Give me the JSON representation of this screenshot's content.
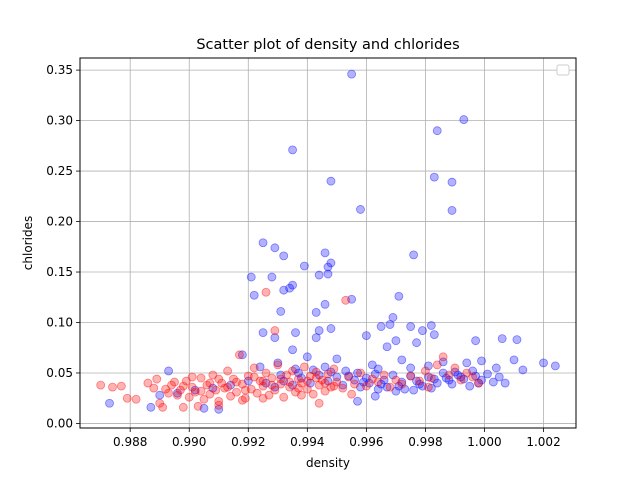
{
  "chart_data": {
    "type": "scatter",
    "title": "Scatter plot of density and chlorides",
    "xlabel": "density",
    "ylabel": "chlorides",
    "xlim": [
      0.9863,
      1.0031
    ],
    "ylim": [
      -0.0045,
      0.362
    ],
    "xticks": [
      0.988,
      0.99,
      0.992,
      0.994,
      0.996,
      0.998,
      1.0,
      1.002
    ],
    "xtick_labels": [
      "0.988",
      "0.990",
      "0.992",
      "0.994",
      "0.996",
      "0.998",
      "1.000",
      "1.002"
    ],
    "yticks": [
      0.0,
      0.05,
      0.1,
      0.15,
      0.2,
      0.25,
      0.3,
      0.35
    ],
    "ytick_labels": [
      "0.00",
      "0.05",
      "0.10",
      "0.15",
      "0.20",
      "0.25",
      "0.30",
      "0.35"
    ],
    "grid": true,
    "legend": {
      "location": "top-right",
      "entries": []
    },
    "series": [
      {
        "name": "blue",
        "color": "#0000ff",
        "alpha": 0.3,
        "points": [
          [
            0.9955,
            0.346
          ],
          [
            0.9993,
            0.301
          ],
          [
            0.9984,
            0.29
          ],
          [
            0.9935,
            0.271
          ],
          [
            0.9983,
            0.244
          ],
          [
            0.9989,
            0.239
          ],
          [
            0.9948,
            0.24
          ],
          [
            0.9958,
            0.212
          ],
          [
            0.9989,
            0.211
          ],
          [
            0.9925,
            0.179
          ],
          [
            0.9929,
            0.174
          ],
          [
            0.9976,
            0.167
          ],
          [
            0.9932,
            0.166
          ],
          [
            0.9946,
            0.169
          ],
          [
            0.9948,
            0.159
          ],
          [
            0.9947,
            0.155
          ],
          [
            0.9939,
            0.156
          ],
          [
            0.9921,
            0.145
          ],
          [
            0.9928,
            0.145
          ],
          [
            0.9944,
            0.147
          ],
          [
            0.9947,
            0.148
          ],
          [
            0.9935,
            0.137
          ],
          [
            0.9934,
            0.134
          ],
          [
            0.9932,
            0.132
          ],
          [
            0.9922,
            0.127
          ],
          [
            0.9971,
            0.126
          ],
          [
            0.9955,
            0.123
          ],
          [
            0.9946,
            0.118
          ],
          [
            0.9931,
            0.111
          ],
          [
            0.9943,
            0.11
          ],
          [
            0.9968,
            0.098
          ],
          [
            0.9969,
            0.105
          ],
          [
            0.9982,
            0.097
          ],
          [
            0.9975,
            0.096
          ],
          [
            0.9936,
            0.09
          ],
          [
            0.9925,
            0.09
          ],
          [
            0.9944,
            0.092
          ],
          [
            0.9948,
            0.094
          ],
          [
            0.9965,
            0.096
          ],
          [
            0.9979,
            0.092
          ],
          [
            0.9943,
            0.085
          ],
          [
            0.9929,
            0.085
          ],
          [
            0.9983,
            0.088
          ],
          [
            0.9997,
            0.082
          ],
          [
            1.0006,
            0.084
          ],
          [
            1.0011,
            0.083
          ],
          [
            0.996,
            0.087
          ],
          [
            0.997,
            0.082
          ],
          [
            0.9977,
            0.08
          ],
          [
            0.9935,
            0.073
          ],
          [
            0.9967,
            0.076
          ],
          [
            1.002,
            0.06
          ],
          [
            1.0024,
            0.057
          ],
          [
            1.001,
            0.063
          ],
          [
            0.9873,
            0.02
          ],
          [
            0.9887,
            0.016
          ],
          [
            0.9905,
            0.015
          ],
          [
            0.991,
            0.014
          ],
          [
            0.9893,
            0.052
          ],
          [
            0.9957,
            0.022
          ],
          [
            0.9963,
            0.027
          ],
          [
            0.9918,
            0.068
          ],
          [
            0.993,
            0.06
          ],
          [
            0.994,
            0.066
          ],
          [
            0.995,
            0.064
          ],
          [
            0.9962,
            0.058
          ],
          [
            0.9972,
            0.063
          ],
          [
            0.9986,
            0.061
          ],
          [
            0.9994,
            0.06
          ],
          [
            0.9999,
            0.062
          ],
          [
            1.0004,
            0.055
          ],
          [
            1.0013,
            0.053
          ],
          [
            0.9924,
            0.056
          ],
          [
            0.9936,
            0.054
          ],
          [
            0.9946,
            0.056
          ],
          [
            0.9953,
            0.052
          ],
          [
            0.9964,
            0.054
          ],
          [
            0.9975,
            0.055
          ],
          [
            0.9981,
            0.057
          ],
          [
            0.999,
            0.051
          ],
          [
            0.9996,
            0.052
          ],
          [
            0.9992,
            0.046
          ],
          [
            0.9988,
            0.043
          ],
          [
            0.9984,
            0.04
          ],
          [
            0.9979,
            0.037
          ],
          [
            0.9973,
            0.034
          ],
          [
            0.9967,
            0.036
          ],
          [
            0.9961,
            0.04
          ],
          [
            0.9956,
            0.043
          ],
          [
            0.995,
            0.046
          ],
          [
            0.9944,
            0.048
          ],
          [
            0.9938,
            0.045
          ],
          [
            0.9932,
            0.042
          ],
          [
            0.9926,
            0.04
          ],
          [
            0.992,
            0.042
          ],
          [
            0.9914,
            0.038
          ],
          [
            0.9908,
            0.035
          ],
          [
            0.9902,
            0.033
          ],
          [
            0.9896,
            0.03
          ],
          [
            0.989,
            0.028
          ],
          [
            0.9957,
            0.05
          ],
          [
            0.9963,
            0.049
          ],
          [
            0.9969,
            0.048
          ],
          [
            0.9975,
            0.047
          ],
          [
            0.9981,
            0.046
          ],
          [
            0.9987,
            0.045
          ],
          [
            0.9993,
            0.044
          ],
          [
            0.9999,
            0.043
          ],
          [
            1.0003,
            0.041
          ],
          [
            1.0007,
            0.04
          ],
          [
            0.9952,
            0.038
          ],
          [
            0.9958,
            0.036
          ],
          [
            0.9964,
            0.034
          ],
          [
            0.997,
            0.032
          ],
          [
            0.9976,
            0.033
          ],
          [
            0.9982,
            0.035
          ],
          [
            0.9947,
            0.042
          ],
          [
            0.9941,
            0.04
          ],
          [
            0.9935,
            0.038
          ],
          [
            0.9929,
            0.036
          ],
          [
            0.996,
            0.045
          ],
          [
            0.9966,
            0.043
          ],
          [
            0.9972,
            0.041
          ],
          [
            0.9978,
            0.039
          ],
          [
            0.9954,
            0.047
          ],
          [
            0.9986,
            0.05
          ],
          [
            0.9991,
            0.048
          ],
          [
            0.9997,
            0.047
          ],
          [
            1.0001,
            0.049
          ],
          [
            1.0005,
            0.046
          ],
          [
            0.9948,
            0.051
          ],
          [
            0.9942,
            0.053
          ],
          [
            0.9937,
            0.05
          ],
          [
            0.9931,
            0.048
          ],
          [
            0.9959,
            0.041
          ],
          [
            0.9965,
            0.039
          ],
          [
            0.9971,
            0.037
          ],
          [
            0.9977,
            0.042
          ],
          [
            0.9983,
            0.044
          ],
          [
            0.9989,
            0.039
          ],
          [
            0.9995,
            0.037
          ],
          [
            0.9998,
            0.04
          ]
        ]
      },
      {
        "name": "red",
        "color": "#ff0000",
        "alpha": 0.3,
        "points": [
          [
            0.9926,
            0.13
          ],
          [
            0.9953,
            0.122
          ],
          [
            0.9929,
            0.092
          ],
          [
            0.987,
            0.038
          ],
          [
            0.9874,
            0.036
          ],
          [
            0.9877,
            0.037
          ],
          [
            0.9879,
            0.025
          ],
          [
            0.9882,
            0.024
          ],
          [
            0.9886,
            0.04
          ],
          [
            0.9888,
            0.035
          ],
          [
            0.9889,
            0.044
          ],
          [
            0.989,
            0.02
          ],
          [
            0.9891,
            0.016
          ],
          [
            0.9893,
            0.03
          ],
          [
            0.9894,
            0.038
          ],
          [
            0.9896,
            0.028
          ],
          [
            0.9897,
            0.033
          ],
          [
            0.9898,
            0.016
          ],
          [
            0.9899,
            0.042
          ],
          [
            0.99,
            0.026
          ],
          [
            0.9901,
            0.036
          ],
          [
            0.9902,
            0.031
          ],
          [
            0.9903,
            0.017
          ],
          [
            0.9904,
            0.045
          ],
          [
            0.9905,
            0.024
          ],
          [
            0.9906,
            0.038
          ],
          [
            0.9907,
            0.029
          ],
          [
            0.9908,
            0.048
          ],
          [
            0.9909,
            0.033
          ],
          [
            0.991,
            0.022
          ],
          [
            0.9911,
            0.04
          ],
          [
            0.9912,
            0.035
          ],
          [
            0.9913,
            0.052
          ],
          [
            0.9914,
            0.027
          ],
          [
            0.9915,
            0.044
          ],
          [
            0.9916,
            0.031
          ],
          [
            0.9917,
            0.068
          ],
          [
            0.9918,
            0.039
          ],
          [
            0.9919,
            0.025
          ],
          [
            0.992,
            0.047
          ],
          [
            0.9921,
            0.034
          ],
          [
            0.9922,
            0.055
          ],
          [
            0.9923,
            0.03
          ],
          [
            0.9924,
            0.042
          ],
          [
            0.9925,
            0.037
          ],
          [
            0.9926,
            0.05
          ],
          [
            0.9927,
            0.028
          ],
          [
            0.9928,
            0.045
          ],
          [
            0.9929,
            0.033
          ],
          [
            0.993,
            0.058
          ],
          [
            0.9931,
            0.039
          ],
          [
            0.9932,
            0.026
          ],
          [
            0.9933,
            0.048
          ],
          [
            0.9934,
            0.036
          ],
          [
            0.9935,
            0.052
          ],
          [
            0.9936,
            0.031
          ],
          [
            0.9937,
            0.044
          ],
          [
            0.9938,
            0.04
          ],
          [
            0.9939,
            0.056
          ],
          [
            0.994,
            0.034
          ],
          [
            0.9941,
            0.047
          ],
          [
            0.9942,
            0.029
          ],
          [
            0.9943,
            0.051
          ],
          [
            0.9944,
            0.038
          ],
          [
            0.9945,
            0.043
          ],
          [
            0.9946,
            0.032
          ],
          [
            0.9947,
            0.049
          ],
          [
            0.9948,
            0.036
          ],
          [
            0.9949,
            0.054
          ],
          [
            0.995,
            0.041
          ],
          [
            0.9952,
            0.035
          ],
          [
            0.9954,
            0.046
          ],
          [
            0.9956,
            0.039
          ],
          [
            0.9958,
            0.05
          ],
          [
            0.996,
            0.037
          ],
          [
            0.9962,
            0.044
          ],
          [
            0.9964,
            0.041
          ],
          [
            0.9966,
            0.048
          ],
          [
            0.9968,
            0.036
          ],
          [
            0.997,
            0.043
          ],
          [
            0.9972,
            0.039
          ],
          [
            0.9975,
            0.047
          ],
          [
            0.9978,
            0.042
          ],
          [
            0.998,
            0.052
          ],
          [
            0.9982,
            0.045
          ],
          [
            0.9984,
            0.058
          ],
          [
            0.9986,
            0.066
          ],
          [
            0.9988,
            0.048
          ],
          [
            0.999,
            0.055
          ],
          [
            0.9992,
            0.043
          ],
          [
            0.9994,
            0.05
          ],
          [
            0.9996,
            0.046
          ],
          [
            0.9998,
            0.04
          ],
          [
            0.9892,
            0.034
          ],
          [
            0.9895,
            0.041
          ],
          [
            0.9898,
            0.037
          ],
          [
            0.9901,
            0.046
          ],
          [
            0.9904,
            0.032
          ],
          [
            0.9907,
            0.04
          ],
          [
            0.991,
            0.044
          ],
          [
            0.9913,
            0.036
          ],
          [
            0.9916,
            0.041
          ],
          [
            0.9919,
            0.033
          ],
          [
            0.9922,
            0.046
          ],
          [
            0.9925,
            0.042
          ],
          [
            0.9928,
            0.038
          ],
          [
            0.9931,
            0.044
          ],
          [
            0.9934,
            0.041
          ],
          [
            0.9937,
            0.035
          ],
          [
            0.994,
            0.042
          ],
          [
            0.9943,
            0.045
          ],
          [
            0.9946,
            0.04
          ],
          [
            0.9949,
            0.037
          ],
          [
            0.9925,
            0.025
          ],
          [
            0.9938,
            0.028
          ],
          [
            0.9944,
            0.02
          ],
          [
            0.991,
            0.018
          ],
          [
            0.9918,
            0.023
          ],
          [
            0.9955,
            0.029
          ],
          [
            0.9981,
            0.036
          ]
        ]
      }
    ]
  }
}
